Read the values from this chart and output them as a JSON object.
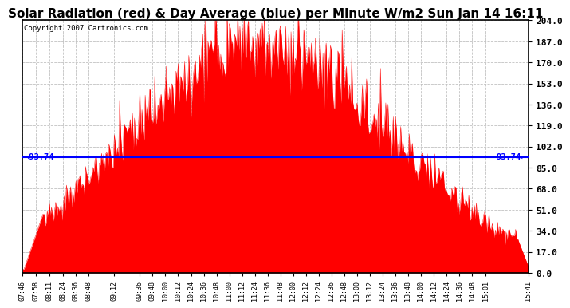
{
  "title": "Solar Radiation (red) & Day Average (blue) per Minute W/m2 Sun Jan 14 16:11",
  "copyright": "Copyright 2007 Cartronics.com",
  "avg_value": 93.74,
  "y_ticks": [
    0.0,
    17.0,
    34.0,
    51.0,
    68.0,
    85.0,
    102.0,
    119.0,
    136.0,
    153.0,
    170.0,
    187.0,
    204.0
  ],
  "y_max": 204.0,
  "y_min": 0.0,
  "x_labels": [
    "07:46",
    "07:58",
    "08:11",
    "08:24",
    "08:36",
    "08:48",
    "09:12",
    "09:36",
    "09:48",
    "10:00",
    "10:12",
    "10:24",
    "10:36",
    "10:48",
    "11:00",
    "11:12",
    "11:24",
    "11:36",
    "11:48",
    "12:00",
    "12:12",
    "12:24",
    "12:36",
    "12:48",
    "13:00",
    "13:12",
    "13:24",
    "13:36",
    "13:48",
    "14:00",
    "14:12",
    "14:24",
    "14:36",
    "14:48",
    "15:01",
    "15:41"
  ],
  "bar_color": "#FF0000",
  "line_color": "#0000FF",
  "background_color": "#FFFFFF",
  "grid_color": "#BBBBBB",
  "title_fontsize": 11,
  "annotation_fontsize": 7.5,
  "copyright_fontsize": 6.5
}
